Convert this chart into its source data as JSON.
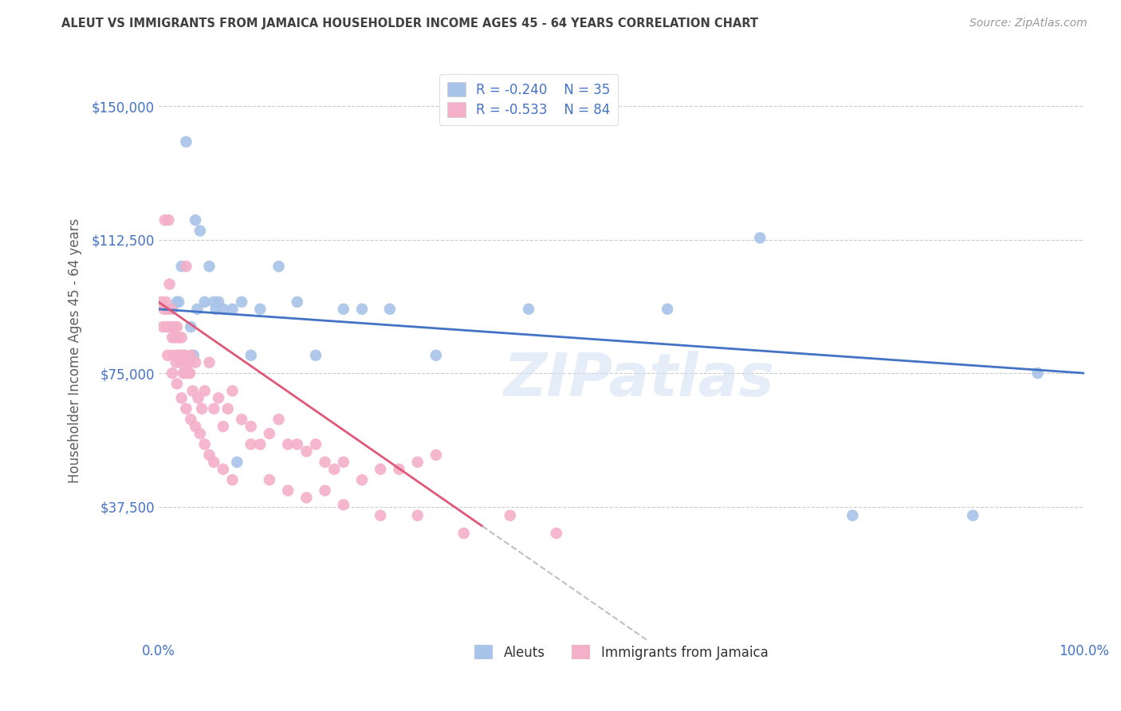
{
  "title": "ALEUT VS IMMIGRANTS FROM JAMAICA HOUSEHOLDER INCOME AGES 45 - 64 YEARS CORRELATION CHART",
  "source": "Source: ZipAtlas.com",
  "ylabel": "Householder Income Ages 45 - 64 years",
  "xlim": [
    0,
    100
  ],
  "ylim": [
    0,
    162500
  ],
  "yticks": [
    37500,
    75000,
    112500,
    150000
  ],
  "ytick_labels": [
    "$37,500",
    "$75,000",
    "$112,500",
    "$150,000"
  ],
  "xtick_labels": [
    "0.0%",
    "100.0%"
  ],
  "legend_r1": "R = -0.240",
  "legend_n1": "N = 35",
  "legend_r2": "R = -0.533",
  "legend_n2": "N = 84",
  "legend_label1": "Aleuts",
  "legend_label2": "Immigrants from Jamaica",
  "blue_color": "#a8c4e8",
  "pink_color": "#f4b0c8",
  "blue_line_color": "#4472c4",
  "pink_line_color": "#e05878",
  "dash_line_color": "#c0c0c0",
  "title_color": "#404040",
  "axis_label_color": "#4472c4",
  "ylabel_color": "#606060",
  "watermark": "ZIPatlas",
  "blue_intercept": 93000,
  "blue_slope": -180,
  "pink_intercept": 95000,
  "pink_slope": -1800,
  "pink_solid_end": 35,
  "pink_dash_end": 55,
  "aleuts_x": [
    1.5,
    2.0,
    2.5,
    3.0,
    3.5,
    4.0,
    4.5,
    5.0,
    5.5,
    6.0,
    6.5,
    7.0,
    8.0,
    9.0,
    10.0,
    11.0,
    13.0,
    15.0,
    17.0,
    20.0,
    22.0,
    25.0,
    30.0,
    40.0,
    55.0,
    65.0,
    75.0,
    88.0,
    95.0,
    2.2,
    2.8,
    3.8,
    4.2,
    6.2,
    8.5
  ],
  "aleuts_y": [
    93000,
    95000,
    105000,
    140000,
    88000,
    118000,
    115000,
    95000,
    105000,
    95000,
    95000,
    93000,
    93000,
    95000,
    80000,
    93000,
    105000,
    95000,
    80000,
    93000,
    93000,
    93000,
    80000,
    93000,
    93000,
    113000,
    35000,
    35000,
    75000,
    95000,
    80000,
    80000,
    93000,
    93000,
    50000
  ],
  "jamaica_x": [
    0.3,
    0.5,
    0.6,
    0.7,
    0.8,
    0.9,
    1.0,
    1.1,
    1.2,
    1.3,
    1.4,
    1.5,
    1.6,
    1.7,
    1.8,
    1.9,
    2.0,
    2.1,
    2.2,
    2.3,
    2.4,
    2.5,
    2.6,
    2.7,
    2.8,
    2.9,
    3.0,
    3.1,
    3.2,
    3.3,
    3.4,
    3.5,
    3.7,
    4.0,
    4.3,
    4.7,
    5.0,
    5.5,
    6.0,
    6.5,
    7.0,
    7.5,
    8.0,
    9.0,
    10.0,
    11.0,
    12.0,
    13.0,
    14.0,
    15.0,
    16.0,
    17.0,
    18.0,
    19.0,
    20.0,
    22.0,
    24.0,
    26.0,
    28.0,
    30.0,
    1.0,
    1.5,
    2.0,
    2.5,
    3.0,
    3.5,
    4.0,
    4.5,
    5.0,
    5.5,
    6.0,
    7.0,
    8.0,
    10.0,
    12.0,
    14.0,
    16.0,
    18.0,
    20.0,
    24.0,
    28.0,
    33.0,
    38.0,
    43.0
  ],
  "jamaica_y": [
    95000,
    88000,
    93000,
    118000,
    95000,
    88000,
    93000,
    118000,
    100000,
    88000,
    93000,
    85000,
    80000,
    88000,
    85000,
    78000,
    88000,
    80000,
    85000,
    80000,
    78000,
    85000,
    80000,
    75000,
    80000,
    75000,
    105000,
    78000,
    75000,
    78000,
    75000,
    80000,
    70000,
    78000,
    68000,
    65000,
    70000,
    78000,
    65000,
    68000,
    60000,
    65000,
    70000,
    62000,
    60000,
    55000,
    58000,
    62000,
    55000,
    55000,
    53000,
    55000,
    50000,
    48000,
    50000,
    45000,
    48000,
    48000,
    50000,
    52000,
    80000,
    75000,
    72000,
    68000,
    65000,
    62000,
    60000,
    58000,
    55000,
    52000,
    50000,
    48000,
    45000,
    55000,
    45000,
    42000,
    40000,
    42000,
    38000,
    35000,
    35000,
    30000,
    35000,
    30000
  ]
}
